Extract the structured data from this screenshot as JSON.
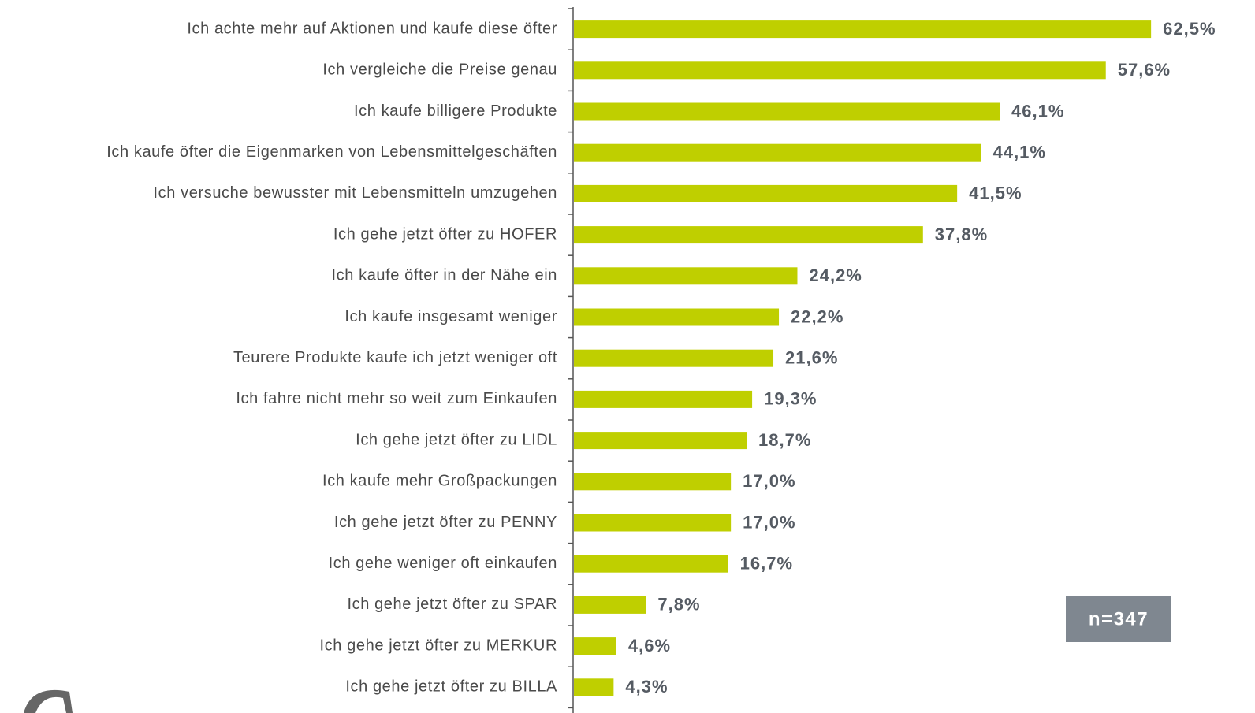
{
  "chart_data": {
    "type": "bar",
    "orientation": "horizontal",
    "categories": [
      "Ich achte mehr auf Aktionen und kaufe diese öfter",
      "Ich vergleiche die Preise genau",
      "Ich kaufe billigere Produkte",
      "Ich kaufe öfter die Eigenmarken von Lebensmittelgeschäften",
      "Ich versuche bewusster mit Lebensmitteln umzugehen",
      "Ich gehe jetzt öfter zu HOFER",
      "Ich kaufe öfter in der Nähe ein",
      "Ich kaufe insgesamt weniger",
      "Teurere Produkte kaufe ich jetzt weniger oft",
      "Ich fahre nicht mehr so weit zum Einkaufen",
      "Ich gehe jetzt öfter zu LIDL",
      "Ich kaufe mehr Großpackungen",
      "Ich gehe jetzt öfter zu PENNY",
      "Ich gehe weniger oft einkaufen",
      "Ich gehe jetzt öfter zu SPAR",
      "Ich gehe jetzt öfter zu MERKUR",
      "Ich gehe jetzt öfter zu BILLA"
    ],
    "values": [
      62.5,
      57.6,
      46.1,
      44.1,
      41.5,
      37.8,
      24.2,
      22.2,
      21.6,
      19.3,
      18.7,
      17.0,
      17.0,
      16.7,
      7.8,
      4.6,
      4.3
    ],
    "value_labels": [
      "62,5%",
      "57,6%",
      "46,1%",
      "44,1%",
      "41,5%",
      "37,8%",
      "24,2%",
      "22,2%",
      "21,6%",
      "19,3%",
      "18,7%",
      "17,0%",
      "17,0%",
      "16,7%",
      "7,8%",
      "4,6%",
      "4,3%"
    ],
    "color": "#bfcf00",
    "xlim": [
      0,
      70
    ],
    "annotation": "n=347"
  }
}
